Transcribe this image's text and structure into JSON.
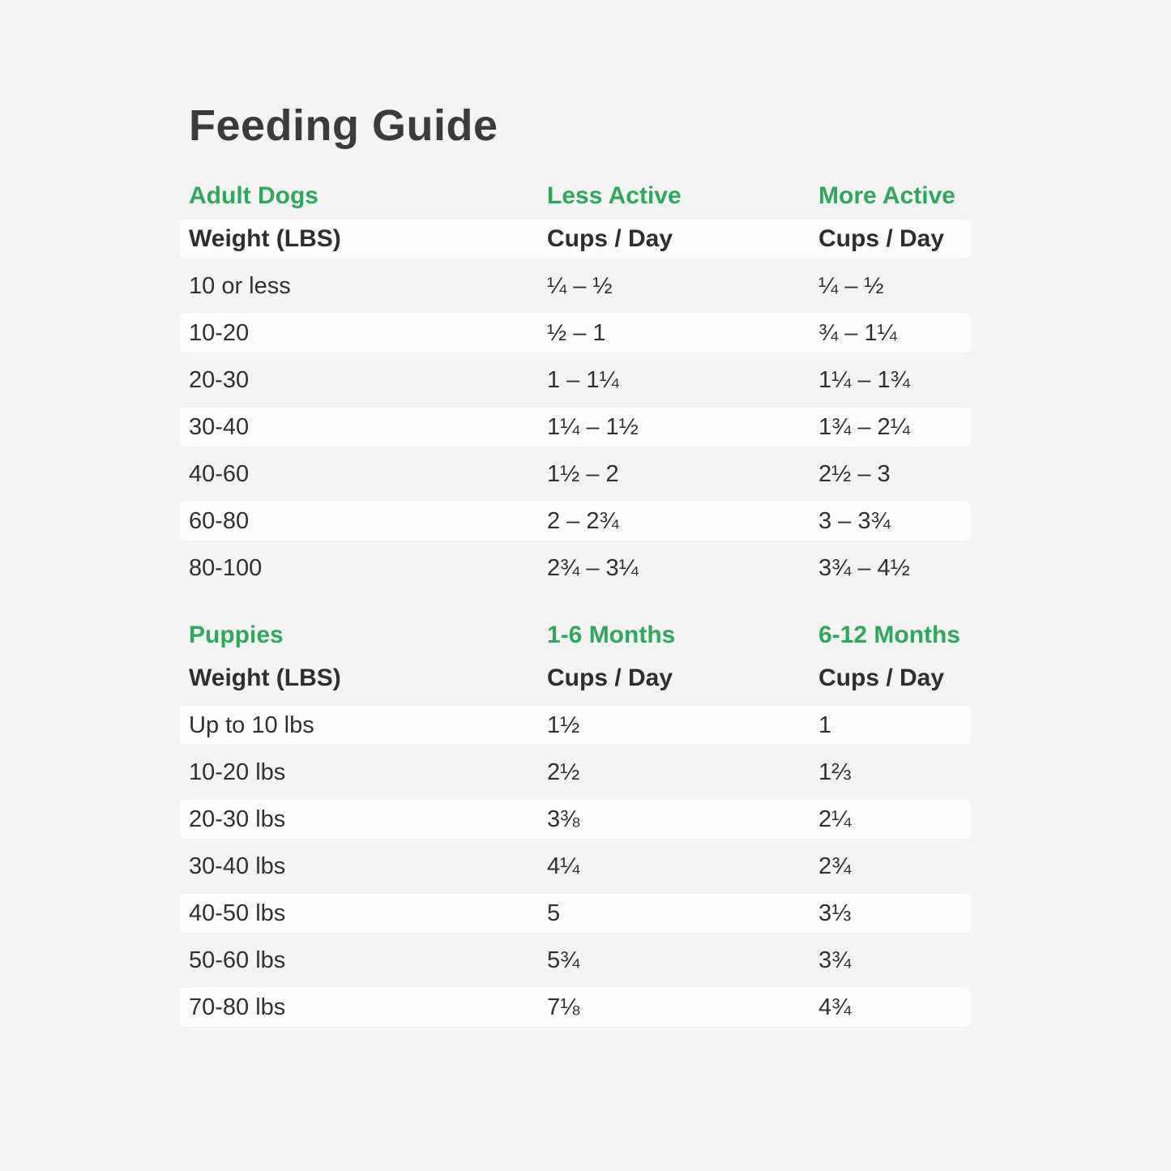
{
  "title": "Feeding Guide",
  "colors": {
    "green": "#2FA75C",
    "text": "#303030",
    "title": "#3B3B3B",
    "background": "#F5F4F4",
    "row_highlight": "#FEFEFE"
  },
  "chart_data": [
    {
      "type": "table",
      "title": "Adult Dogs",
      "group_headers": [
        "Adult Dogs",
        "Less Active",
        "More Active"
      ],
      "column_headers": [
        "Weight (LBS)",
        "Cups / Day",
        "Cups / Day"
      ],
      "rows": [
        [
          "10 or less",
          "¼ – ½",
          "¼ – ½"
        ],
        [
          "10-20",
          "½ – 1",
          "¾ – 1¼"
        ],
        [
          "20-30",
          "1 – 1¼",
          "1¼ – 1¾"
        ],
        [
          "30-40",
          "1¼ – 1½",
          "1¾ – 2¼"
        ],
        [
          "40-60",
          "1½ – 2",
          "2½ – 3"
        ],
        [
          "60-80",
          "2 – 2¾",
          "3 – 3¾"
        ],
        [
          "80-100",
          "2¾ – 3¼",
          "3¾ – 4½"
        ]
      ]
    },
    {
      "type": "table",
      "title": "Puppies",
      "group_headers": [
        "Puppies",
        "1-6 Months",
        "6-12 Months"
      ],
      "column_headers": [
        "Weight (LBS)",
        "Cups / Day",
        "Cups / Day"
      ],
      "rows": [
        [
          "Up to 10 lbs",
          "1½",
          "1"
        ],
        [
          "10-20 lbs",
          "2½",
          "1⅔"
        ],
        [
          "20-30 lbs",
          "3⅜",
          "2¼"
        ],
        [
          "30-40 lbs",
          "4¼",
          "2¾"
        ],
        [
          "40-50 lbs",
          "5",
          "3⅓"
        ],
        [
          "50-60 lbs",
          "5¾",
          "3¾"
        ],
        [
          "70-80 lbs",
          "7⅛",
          "4¾"
        ]
      ]
    }
  ]
}
